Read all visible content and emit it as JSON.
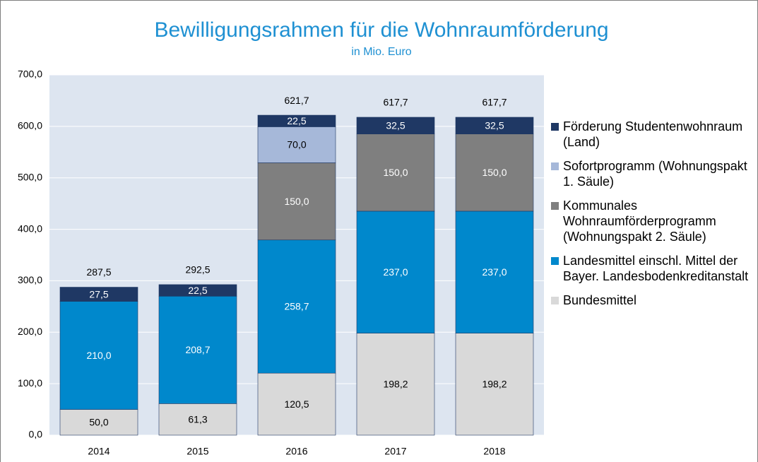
{
  "chart_data": {
    "type": "stacked_bar",
    "title": "Bewilligungsrahmen für die Wohnraumförderung",
    "subtitle": "in Mio. Euro",
    "categories": [
      "2014",
      "2015",
      "2016",
      "2017",
      "2018"
    ],
    "series": [
      {
        "name": "Bundesmittel",
        "color": "#d9d9d9",
        "values": [
          50.0,
          61.3,
          120.5,
          198.2,
          198.2
        ],
        "value_labels": [
          "50,0",
          "61,3",
          "120,5",
          "198,2",
          "198,2"
        ]
      },
      {
        "name": "Landesmittel einschl. Mittel der Bayer. Landesbodenkreditanstalt",
        "color": "#0088cc",
        "values": [
          210.0,
          208.7,
          258.7,
          237.0,
          237.0
        ],
        "value_labels": [
          "210,0",
          "208,7",
          "258,7",
          "237,0",
          "237,0"
        ]
      },
      {
        "name": "Kommunales Wohnraumförderprogramm (Wohnungspakt 2. Säule)",
        "color": "#7f7f7f",
        "values": [
          null,
          null,
          150.0,
          150.0,
          150.0
        ],
        "value_labels": [
          null,
          null,
          "150,0",
          "150,0",
          "150,0"
        ]
      },
      {
        "name": "Sofortprogramm (Wohnungspakt 1. Säule)",
        "color": "#a6b8d9",
        "values": [
          null,
          null,
          70.0,
          null,
          null
        ],
        "value_labels": [
          null,
          null,
          "70,0",
          null,
          null
        ]
      },
      {
        "name": "Förderung Studentenwohnraum (Land)",
        "color": "#1f3864",
        "values": [
          27.5,
          22.5,
          22.5,
          32.5,
          32.5
        ],
        "value_labels": [
          "27,5",
          "22,5",
          "22,5",
          "32,5",
          "32,5"
        ]
      }
    ],
    "totals": [
      287.5,
      292.5,
      621.7,
      617.7,
      617.7
    ],
    "total_labels": [
      "287,5",
      "292,5",
      "621,7",
      "617,7",
      "617,7"
    ],
    "ylim": [
      0,
      700
    ],
    "yticks": [
      {
        "value": 0,
        "label": "0,0"
      },
      {
        "value": 100,
        "label": "100,0"
      },
      {
        "value": 200,
        "label": "200,0"
      },
      {
        "value": 300,
        "label": "300,0"
      },
      {
        "value": 400,
        "label": "400,0"
      },
      {
        "value": 500,
        "label": "500,0"
      },
      {
        "value": 600,
        "label": "600,0"
      },
      {
        "value": 700,
        "label": "700,0"
      }
    ],
    "grid": true,
    "legend": "right"
  }
}
